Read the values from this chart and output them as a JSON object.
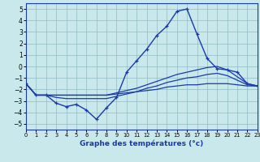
{
  "xlabel": "Graphe des températures (°c)",
  "xlim": [
    0,
    23
  ],
  "ylim": [
    -5.5,
    5.5
  ],
  "yticks": [
    -5,
    -4,
    -3,
    -2,
    -1,
    0,
    1,
    2,
    3,
    4,
    5
  ],
  "xticks": [
    0,
    1,
    2,
    3,
    4,
    5,
    6,
    7,
    8,
    9,
    10,
    11,
    12,
    13,
    14,
    15,
    16,
    17,
    18,
    19,
    20,
    21,
    22,
    23
  ],
  "bg_color": "#c8e8ec",
  "grid_color": "#90bcc0",
  "line_color": "#1a3aab",
  "line1": [
    -1.5,
    -2.5,
    -2.5,
    -3.2,
    -3.5,
    -3.3,
    -3.8,
    -4.6,
    -3.6,
    -2.7,
    -0.5,
    0.5,
    1.5,
    2.7,
    3.5,
    4.8,
    5.0,
    2.8,
    0.7,
    -0.2,
    -0.3,
    -0.5,
    -1.5,
    -1.7
  ],
  "line2": [
    -1.5,
    -2.5,
    -2.5,
    -2.5,
    -2.5,
    -2.5,
    -2.5,
    -2.5,
    -2.5,
    -2.4,
    -2.3,
    -2.2,
    -2.1,
    -2.0,
    -1.8,
    -1.7,
    -1.6,
    -1.6,
    -1.5,
    -1.5,
    -1.5,
    -1.6,
    -1.7,
    -1.7
  ],
  "line3": [
    -1.5,
    -2.5,
    -2.5,
    -2.5,
    -2.5,
    -2.5,
    -2.5,
    -2.5,
    -2.5,
    -2.3,
    -2.1,
    -1.9,
    -1.6,
    -1.3,
    -1.0,
    -0.7,
    -0.5,
    -0.3,
    -0.1,
    0.0,
    -0.3,
    -0.9,
    -1.5,
    -1.7
  ],
  "line4": [
    -1.5,
    -2.5,
    -2.5,
    -2.7,
    -2.8,
    -2.8,
    -2.8,
    -2.8,
    -2.8,
    -2.6,
    -2.4,
    -2.2,
    -1.9,
    -1.7,
    -1.4,
    -1.2,
    -1.0,
    -0.9,
    -0.7,
    -0.6,
    -0.8,
    -1.2,
    -1.6,
    -1.7
  ]
}
